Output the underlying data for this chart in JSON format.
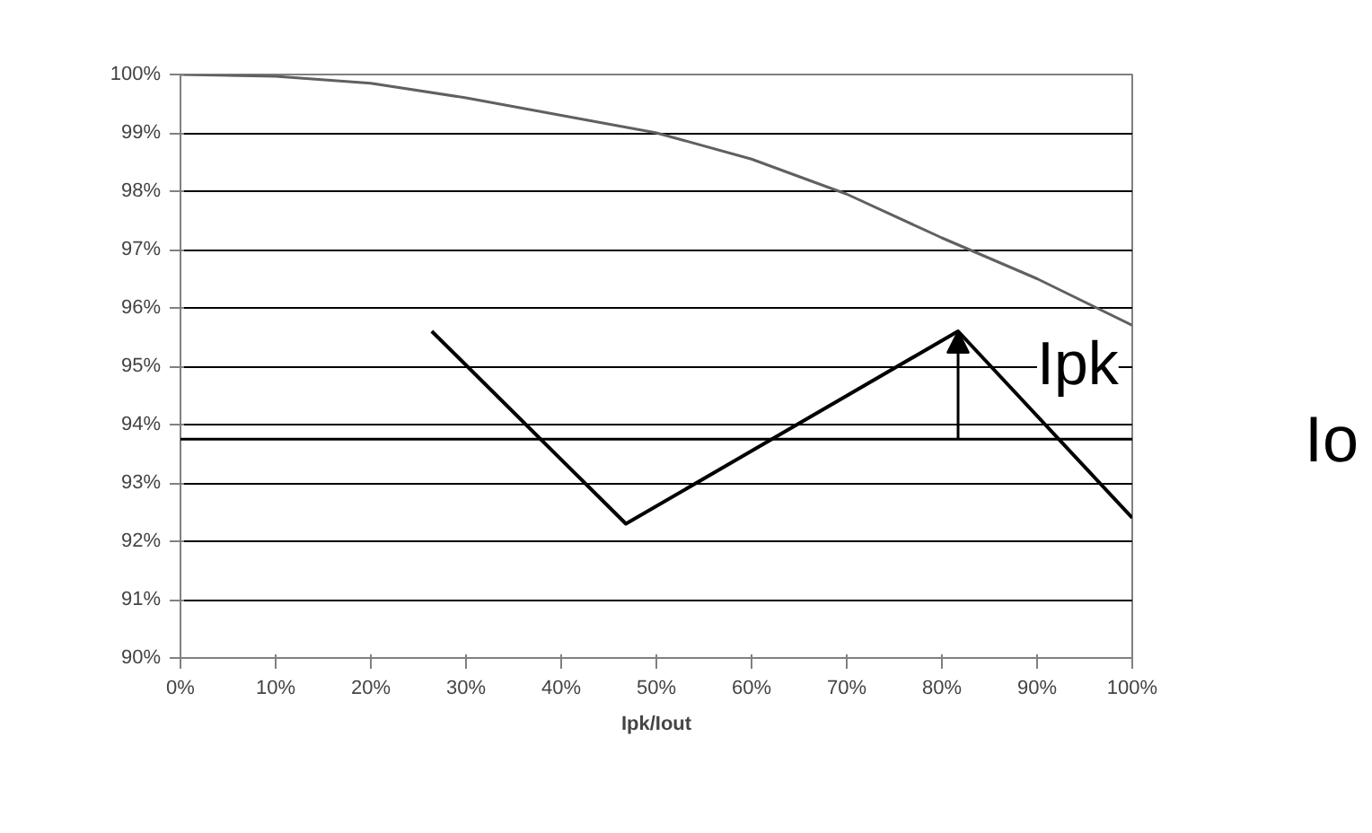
{
  "chart_data": {
    "type": "line",
    "xlabel": "Ipk/Iout",
    "x": [
      0,
      10,
      20,
      30,
      40,
      50,
      60,
      70,
      80,
      90,
      100
    ],
    "series": [
      {
        "color": "#606060",
        "values": [
          100,
          99.97,
          99.85,
          99.6,
          99.3,
          99.0,
          98.55,
          97.95,
          97.2,
          96.5,
          95.7
        ]
      },
      {
        "color": "#000000",
        "x": [
          26.4,
          46.8,
          81.7,
          100
        ],
        "values": [
          95.6,
          92.3,
          95.6,
          92.4
        ]
      }
    ],
    "xlim": [
      0,
      100
    ],
    "xticks": [
      {
        "value": 0,
        "label": "0%"
      },
      {
        "value": 10,
        "label": "10%"
      },
      {
        "value": 20,
        "label": "20%"
      },
      {
        "value": 30,
        "label": "30%"
      },
      {
        "value": 40,
        "label": "40%"
      },
      {
        "value": 50,
        "label": "50%"
      },
      {
        "value": 60,
        "label": "60%"
      },
      {
        "value": 70,
        "label": "70%"
      },
      {
        "value": 80,
        "label": "80%"
      },
      {
        "value": 90,
        "label": "90%"
      },
      {
        "value": 100,
        "label": "100%"
      }
    ],
    "ylim": [
      90,
      100
    ],
    "yticks": [
      {
        "value": 90,
        "label": "90%"
      },
      {
        "value": 91,
        "label": "91%"
      },
      {
        "value": 92,
        "label": "92%"
      },
      {
        "value": 93,
        "label": "93%"
      },
      {
        "value": 94,
        "label": "94%"
      },
      {
        "value": 95,
        "label": "95%"
      },
      {
        "value": 96,
        "label": "96%"
      },
      {
        "value": 97,
        "label": "97%"
      },
      {
        "value": 98,
        "label": "98%"
      },
      {
        "value": 99,
        "label": "99%"
      },
      {
        "value": 100,
        "label": "100%"
      }
    ],
    "ref_lines": [
      {
        "axis": "y",
        "value": 93.75,
        "label": "Io",
        "color": "#000000"
      }
    ],
    "grid": "y",
    "marker": "none",
    "line_style": "solid",
    "annotations": [
      "Ipk"
    ]
  }
}
